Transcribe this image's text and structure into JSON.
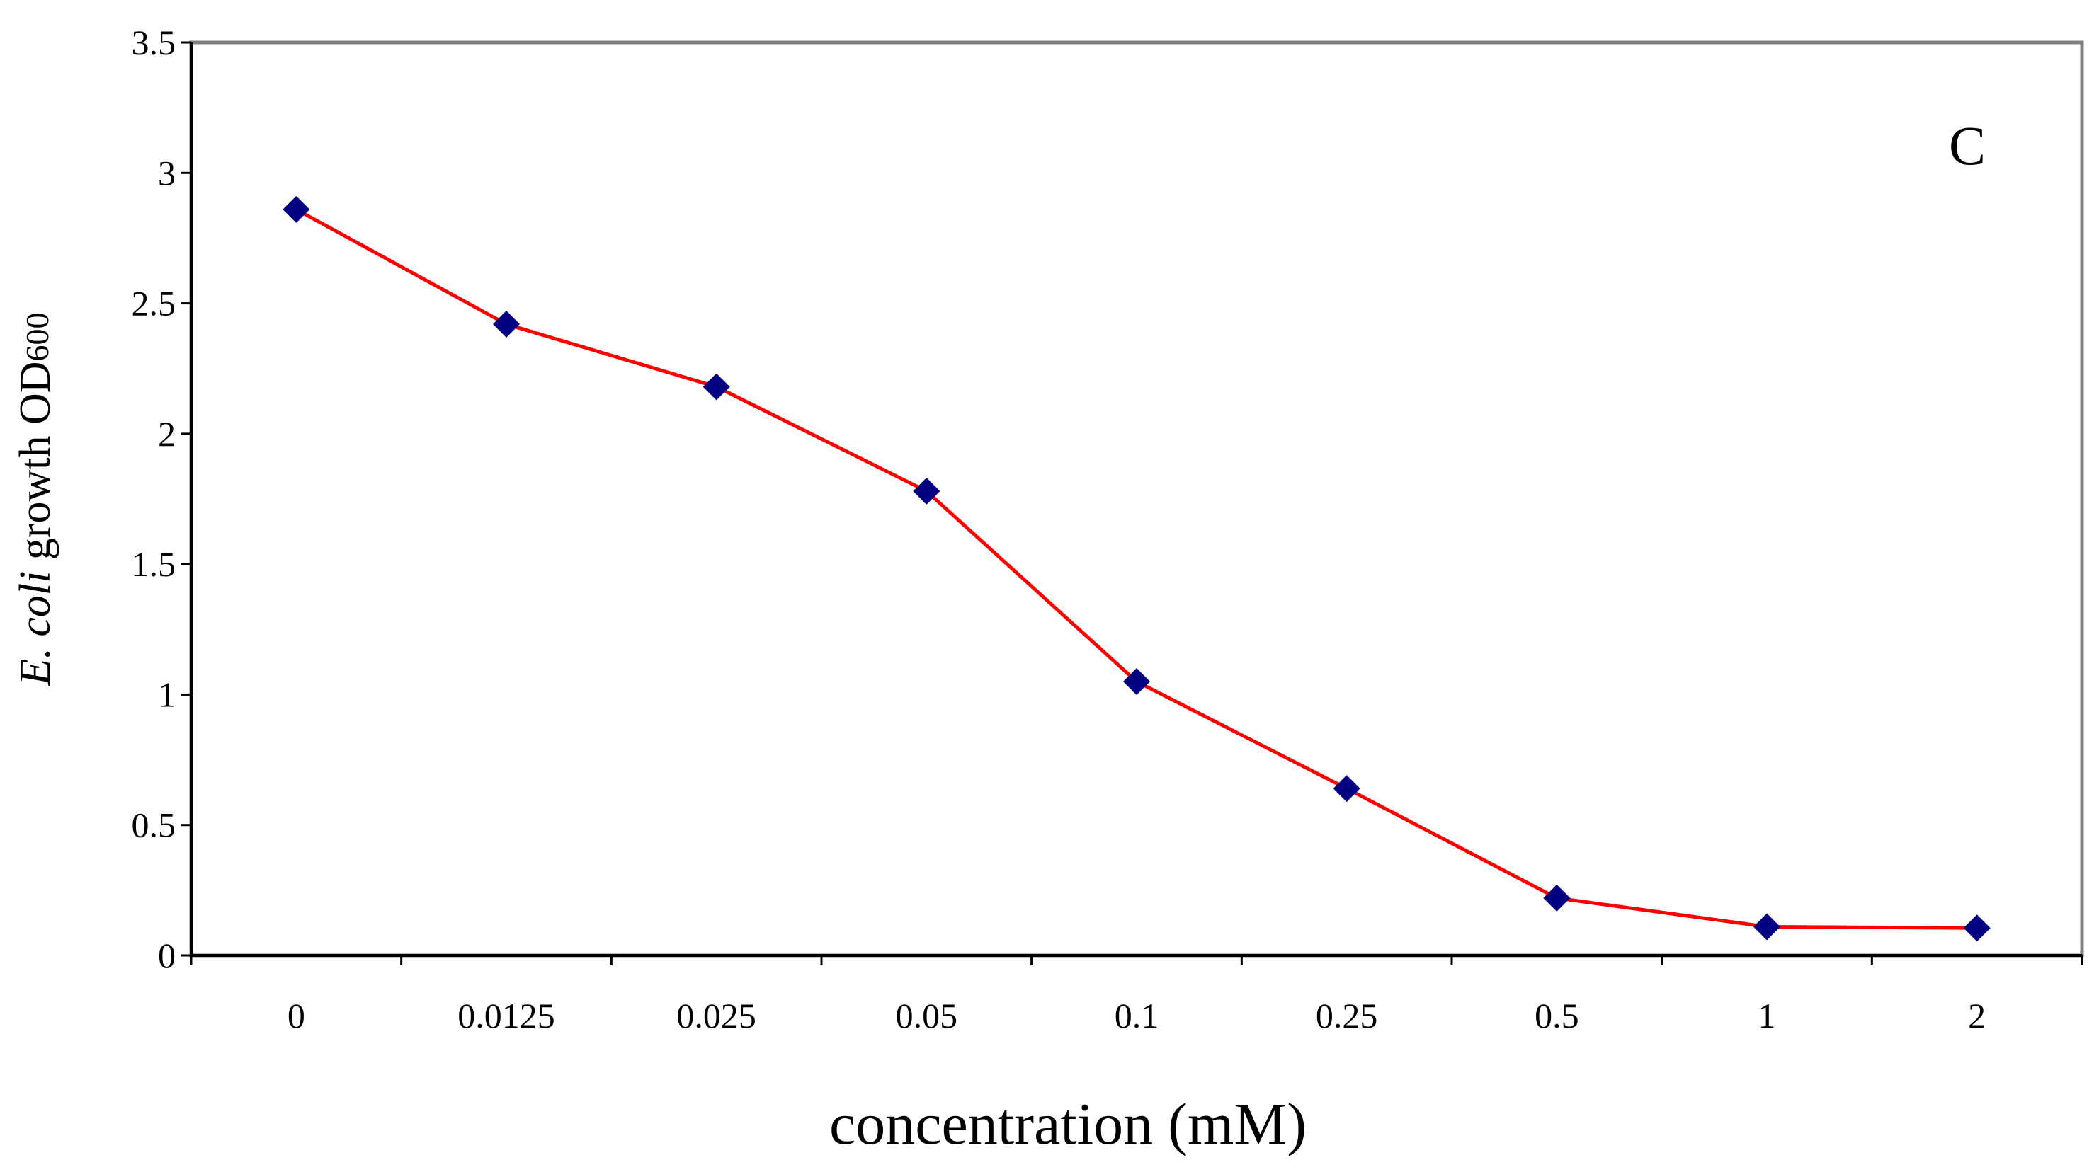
{
  "chart_data": {
    "type": "line",
    "title": "",
    "panel_label": "C",
    "xlabel": "concentration (mM)",
    "ylabel": {
      "italic_part": "E. coli",
      "rest": " growth OD",
      "subscript": "600"
    },
    "categories": [
      "0",
      "0.0125",
      "0.025",
      "0.05",
      "0.1",
      "0.25",
      "0.5",
      "1",
      "2"
    ],
    "series": [
      {
        "name": "E. coli growth",
        "values": [
          2.86,
          2.42,
          2.18,
          1.78,
          1.05,
          0.64,
          0.22,
          0.11,
          0.105
        ],
        "line_color": "#ff0000",
        "marker": "diamond",
        "marker_color": "#000080"
      }
    ],
    "ylim": [
      0,
      3.5
    ],
    "yticks": [
      "0",
      "0.5",
      "1",
      "1.5",
      "2",
      "2.5",
      "3",
      "3.5"
    ],
    "grid": false,
    "legend": "none",
    "frame_color": "#808080"
  }
}
